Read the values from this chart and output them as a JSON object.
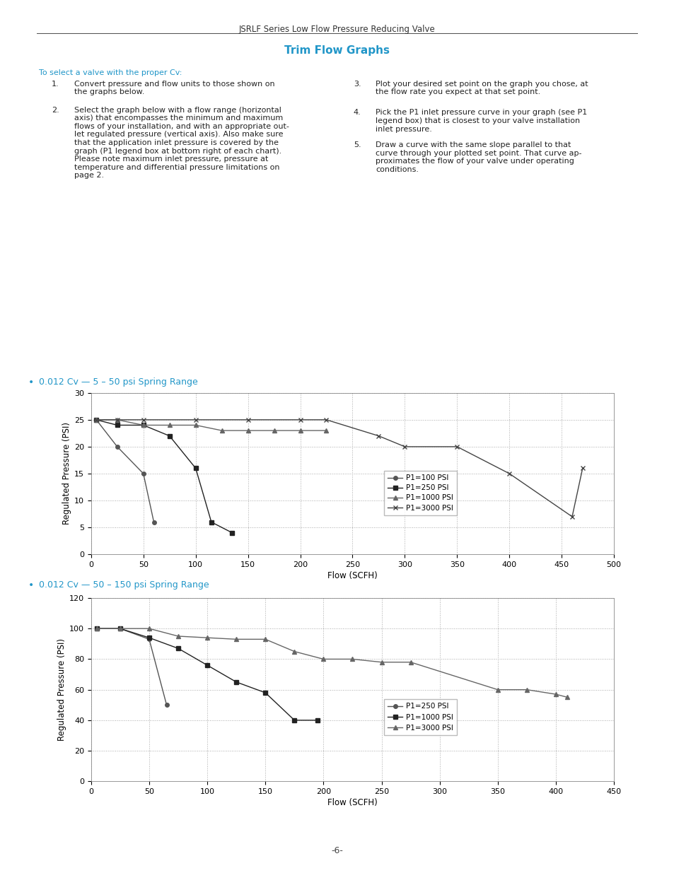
{
  "page_title": "JSRLF Series Low Flow Pressure Reducing Valve",
  "section_title": "Trim Flow Graphs",
  "cyan_color": "#2196C8",
  "intro_cyan": "To select a valve with the proper Cv:",
  "chart1_bullet": "0.012 Cv — 5 – 50 psi Spring Range",
  "chart2_bullet": "0.012 Cv — 50 – 150 psi Spring Range",
  "chart1": {
    "xlabel": "Flow (SCFH)",
    "ylabel": "Regulated Pressure (PSI)",
    "xlim": [
      0,
      500
    ],
    "ylim": [
      0,
      30
    ],
    "xticks": [
      0,
      50,
      100,
      150,
      200,
      250,
      300,
      350,
      400,
      450,
      500
    ],
    "yticks": [
      0,
      5,
      10,
      15,
      20,
      25,
      30
    ],
    "series": [
      {
        "label": "P1=100 PSI",
        "marker": "o",
        "color": "#555555",
        "x": [
          5,
          25,
          50,
          60
        ],
        "y": [
          25,
          20,
          15,
          6
        ]
      },
      {
        "label": "P1=250 PSI",
        "marker": "s",
        "color": "#222222",
        "x": [
          5,
          25,
          50,
          75,
          100,
          115,
          135
        ],
        "y": [
          25,
          24,
          24,
          22,
          16,
          6,
          4
        ]
      },
      {
        "label": "P1=1000 PSI",
        "marker": "^",
        "color": "#666666",
        "x": [
          5,
          25,
          50,
          75,
          100,
          125,
          150,
          175,
          200,
          225
        ],
        "y": [
          25,
          25,
          24,
          24,
          24,
          23,
          23,
          23,
          23,
          23
        ]
      },
      {
        "label": "P1=3000 PSI",
        "marker": "x",
        "color": "#444444",
        "x": [
          5,
          25,
          50,
          100,
          150,
          200,
          225,
          275,
          300,
          350,
          400,
          460,
          470
        ],
        "y": [
          25,
          25,
          25,
          25,
          25,
          25,
          25,
          22,
          20,
          20,
          15,
          7,
          16
        ]
      }
    ]
  },
  "chart2": {
    "xlabel": "Flow (SCFH)",
    "ylabel": "Regulated Pressure (PSI)",
    "xlim": [
      0,
      450
    ],
    "ylim": [
      0,
      120
    ],
    "xticks": [
      0,
      50,
      100,
      150,
      200,
      250,
      300,
      350,
      400,
      450
    ],
    "yticks": [
      0,
      20,
      40,
      60,
      80,
      100,
      120
    ],
    "series": [
      {
        "label": "P1=250 PSI",
        "marker": "o",
        "color": "#555555",
        "x": [
          5,
          25,
          50,
          65
        ],
        "y": [
          100,
          100,
          93,
          50
        ]
      },
      {
        "label": "P1=1000 PSI",
        "marker": "s",
        "color": "#222222",
        "x": [
          5,
          25,
          50,
          75,
          100,
          125,
          150,
          175,
          195
        ],
        "y": [
          100,
          100,
          94,
          87,
          76,
          65,
          58,
          40,
          40
        ]
      },
      {
        "label": "P1=3000 PSI",
        "marker": "^",
        "color": "#666666",
        "x": [
          5,
          25,
          50,
          75,
          100,
          125,
          150,
          175,
          200,
          225,
          250,
          275,
          350,
          375,
          400,
          410
        ],
        "y": [
          100,
          100,
          100,
          95,
          94,
          93,
          93,
          85,
          80,
          80,
          78,
          78,
          60,
          60,
          57,
          55
        ]
      }
    ]
  }
}
